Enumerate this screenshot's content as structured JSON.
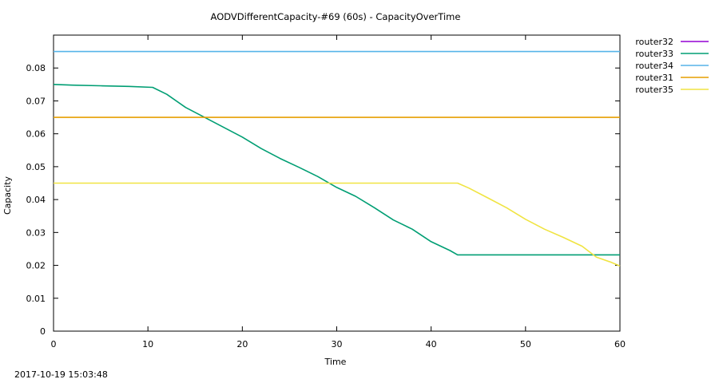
{
  "chart_data": {
    "type": "line",
    "title": "AODVDifferentCapacity-#69 (60s) - CapacityOverTime",
    "xlabel": "Time",
    "ylabel": "Capacity",
    "xlim": [
      0,
      60
    ],
    "ylim": [
      0,
      0.09
    ],
    "xticks": [
      0,
      10,
      20,
      30,
      40,
      50,
      60
    ],
    "yticks": [
      0,
      0.01,
      0.02,
      0.03,
      0.04,
      0.05,
      0.06,
      0.07,
      0.08
    ],
    "ytick_labels": [
      "0",
      "0.01",
      "0.02",
      "0.03",
      "0.04",
      "0.05",
      "0.06",
      "0.07",
      "0.08"
    ],
    "grid": false,
    "legend_position": "outside-right",
    "series": [
      {
        "name": "router32",
        "color": "#9400d3",
        "x": [],
        "y": []
      },
      {
        "name": "router33",
        "color": "#009e73",
        "x": [
          0,
          2,
          5,
          8,
          10.5,
          12,
          14,
          16,
          18,
          20,
          22,
          24,
          26,
          28,
          30,
          32,
          34,
          36,
          38,
          40,
          42,
          42.8,
          45,
          50,
          55,
          60
        ],
        "y": [
          0.075,
          0.0748,
          0.0746,
          0.0744,
          0.0741,
          0.072,
          0.068,
          0.065,
          0.062,
          0.059,
          0.0555,
          0.0525,
          0.0498,
          0.047,
          0.0437,
          0.041,
          0.0375,
          0.0338,
          0.031,
          0.0272,
          0.0245,
          0.0232,
          0.0232,
          0.0232,
          0.0232,
          0.0232
        ]
      },
      {
        "name": "router34",
        "color": "#56b4e9",
        "x": [
          0,
          60
        ],
        "y": [
          0.085,
          0.085
        ]
      },
      {
        "name": "router31",
        "color": "#e69f00",
        "x": [
          0,
          60
        ],
        "y": [
          0.065,
          0.065
        ]
      },
      {
        "name": "router35",
        "color": "#f0e442",
        "x": [
          0,
          42.8,
          44,
          46,
          48,
          50,
          52,
          54,
          56,
          57.5,
          59,
          60
        ],
        "y": [
          0.045,
          0.045,
          0.0435,
          0.0405,
          0.0375,
          0.034,
          0.031,
          0.0285,
          0.0258,
          0.0225,
          0.021,
          0.0198
        ]
      }
    ]
  },
  "footer": {
    "timestamp": "2017-10-19 15:03:48"
  }
}
